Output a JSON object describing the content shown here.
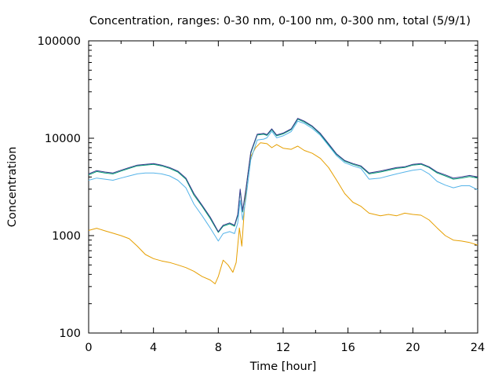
{
  "chart_data": {
    "type": "line",
    "title": "Concentration, ranges: 0-30 nm, 0-100 nm, 0-300 nm, total (5/9/1)",
    "xlabel": "Time [hour]",
    "ylabel": "Concentration",
    "xlim": [
      0,
      24
    ],
    "ylim": [
      100,
      100000
    ],
    "yscale": "log",
    "xticks": [
      0,
      4,
      8,
      12,
      16,
      20,
      24
    ],
    "xtick_labels": [
      "0",
      "4",
      "8",
      "12",
      "16",
      "20",
      "24"
    ],
    "yticks": [
      100,
      1000,
      10000,
      100000
    ],
    "ytick_labels": [
      "100",
      "1000",
      "10000",
      "100000"
    ],
    "grid": false,
    "legend": "none",
    "series": [
      {
        "color": "#E69F00",
        "points": [
          [
            0,
            1130
          ],
          [
            0.5,
            1190
          ],
          [
            1,
            1120
          ],
          [
            1.5,
            1060
          ],
          [
            2,
            1000
          ],
          [
            2.5,
            930
          ],
          [
            3,
            780
          ],
          [
            3.5,
            640
          ],
          [
            4,
            580
          ],
          [
            4.5,
            550
          ],
          [
            5,
            530
          ],
          [
            5.5,
            500
          ],
          [
            6,
            470
          ],
          [
            6.5,
            430
          ],
          [
            7,
            380
          ],
          [
            7.5,
            350
          ],
          [
            7.8,
            320
          ],
          [
            8,
            380
          ],
          [
            8.3,
            560
          ],
          [
            8.6,
            500
          ],
          [
            8.9,
            420
          ],
          [
            9.1,
            530
          ],
          [
            9.3,
            1200
          ],
          [
            9.45,
            780
          ],
          [
            9.6,
            1800
          ],
          [
            9.8,
            4000
          ],
          [
            10,
            6500
          ],
          [
            10.3,
            8000
          ],
          [
            10.6,
            9000
          ],
          [
            11,
            8800
          ],
          [
            11.3,
            8000
          ],
          [
            11.6,
            8600
          ],
          [
            12,
            7900
          ],
          [
            12.5,
            7700
          ],
          [
            12.9,
            8300
          ],
          [
            13.3,
            7500
          ],
          [
            13.8,
            7000
          ],
          [
            14.3,
            6200
          ],
          [
            14.8,
            5000
          ],
          [
            15.3,
            3700
          ],
          [
            15.8,
            2700
          ],
          [
            16.3,
            2200
          ],
          [
            16.8,
            2000
          ],
          [
            17.3,
            1700
          ],
          [
            18,
            1600
          ],
          [
            18.5,
            1650
          ],
          [
            19,
            1600
          ],
          [
            19.5,
            1700
          ],
          [
            20,
            1650
          ],
          [
            20.5,
            1620
          ],
          [
            21,
            1450
          ],
          [
            21.5,
            1200
          ],
          [
            22,
            1000
          ],
          [
            22.5,
            900
          ],
          [
            23,
            880
          ],
          [
            23.5,
            850
          ],
          [
            24,
            800
          ]
        ]
      },
      {
        "color": "#56B4E9",
        "points": [
          [
            0,
            3700
          ],
          [
            0.5,
            3900
          ],
          [
            1,
            3800
          ],
          [
            1.5,
            3700
          ],
          [
            2,
            3900
          ],
          [
            2.5,
            4100
          ],
          [
            3,
            4300
          ],
          [
            3.5,
            4400
          ],
          [
            4,
            4400
          ],
          [
            4.5,
            4300
          ],
          [
            5,
            4100
          ],
          [
            5.5,
            3700
          ],
          [
            6,
            3100
          ],
          [
            6.5,
            2100
          ],
          [
            7,
            1600
          ],
          [
            7.5,
            1200
          ],
          [
            8,
            880
          ],
          [
            8.3,
            1050
          ],
          [
            8.7,
            1100
          ],
          [
            9,
            1050
          ],
          [
            9.2,
            1350
          ],
          [
            9.35,
            2300
          ],
          [
            9.5,
            1450
          ],
          [
            9.7,
            2400
          ],
          [
            10,
            6000
          ],
          [
            10.4,
            9600
          ],
          [
            10.8,
            9800
          ],
          [
            11,
            10100
          ],
          [
            11.3,
            11800
          ],
          [
            11.6,
            10100
          ],
          [
            12,
            10600
          ],
          [
            12.5,
            11700
          ],
          [
            12.9,
            15000
          ],
          [
            13.3,
            14200
          ],
          [
            13.8,
            12600
          ],
          [
            14.3,
            10700
          ],
          [
            14.8,
            8400
          ],
          [
            15.3,
            6600
          ],
          [
            15.8,
            5600
          ],
          [
            16.3,
            5200
          ],
          [
            16.8,
            4900
          ],
          [
            17.3,
            3800
          ],
          [
            18,
            3900
          ],
          [
            18.5,
            4100
          ],
          [
            19,
            4300
          ],
          [
            19.5,
            4500
          ],
          [
            20,
            4700
          ],
          [
            20.5,
            4800
          ],
          [
            21,
            4300
          ],
          [
            21.5,
            3600
          ],
          [
            22,
            3300
          ],
          [
            22.5,
            3100
          ],
          [
            23,
            3250
          ],
          [
            23.5,
            3250
          ],
          [
            24,
            2950
          ]
        ]
      },
      {
        "color": "#009E73",
        "points": [
          [
            0,
            4200
          ],
          [
            0.5,
            4550
          ],
          [
            1,
            4400
          ],
          [
            1.5,
            4300
          ],
          [
            2,
            4600
          ],
          [
            2.5,
            4900
          ],
          [
            3,
            5200
          ],
          [
            3.5,
            5300
          ],
          [
            4,
            5400
          ],
          [
            4.5,
            5200
          ],
          [
            5,
            4900
          ],
          [
            5.5,
            4500
          ],
          [
            6,
            3800
          ],
          [
            6.5,
            2600
          ],
          [
            7,
            2000
          ],
          [
            7.5,
            1500
          ],
          [
            8,
            1080
          ],
          [
            8.3,
            1250
          ],
          [
            8.7,
            1320
          ],
          [
            9,
            1250
          ],
          [
            9.2,
            1600
          ],
          [
            9.35,
            2900
          ],
          [
            9.5,
            1750
          ],
          [
            9.7,
            2900
          ],
          [
            10,
            7000
          ],
          [
            10.4,
            10800
          ],
          [
            10.8,
            11000
          ],
          [
            11,
            10700
          ],
          [
            11.3,
            12300
          ],
          [
            11.6,
            10600
          ],
          [
            12,
            11100
          ],
          [
            12.5,
            12300
          ],
          [
            12.9,
            15700
          ],
          [
            13.3,
            14700
          ],
          [
            13.8,
            13100
          ],
          [
            14.3,
            11000
          ],
          [
            14.8,
            8600
          ],
          [
            15.3,
            6800
          ],
          [
            15.8,
            5800
          ],
          [
            16.3,
            5400
          ],
          [
            16.8,
            5100
          ],
          [
            17.3,
            4300
          ],
          [
            18,
            4500
          ],
          [
            18.5,
            4700
          ],
          [
            19,
            4900
          ],
          [
            19.5,
            5000
          ],
          [
            20,
            5300
          ],
          [
            20.5,
            5400
          ],
          [
            21,
            5000
          ],
          [
            21.5,
            4400
          ],
          [
            22,
            4100
          ],
          [
            22.5,
            3800
          ],
          [
            23,
            3900
          ],
          [
            23.5,
            4050
          ],
          [
            24,
            3900
          ]
        ]
      },
      {
        "color": "#3B3B8F",
        "points": [
          [
            0,
            4300
          ],
          [
            0.5,
            4650
          ],
          [
            1,
            4500
          ],
          [
            1.5,
            4400
          ],
          [
            2,
            4700
          ],
          [
            2.5,
            5000
          ],
          [
            3,
            5300
          ],
          [
            3.5,
            5400
          ],
          [
            4,
            5500
          ],
          [
            4.5,
            5300
          ],
          [
            5,
            5000
          ],
          [
            5.5,
            4600
          ],
          [
            6,
            3900
          ],
          [
            6.5,
            2700
          ],
          [
            7,
            2050
          ],
          [
            7.5,
            1550
          ],
          [
            8,
            1100
          ],
          [
            8.3,
            1280
          ],
          [
            8.7,
            1350
          ],
          [
            9,
            1280
          ],
          [
            9.2,
            1650
          ],
          [
            9.35,
            3000
          ],
          [
            9.5,
            1800
          ],
          [
            9.7,
            3000
          ],
          [
            10,
            7200
          ],
          [
            10.4,
            11000
          ],
          [
            10.8,
            11200
          ],
          [
            11,
            10900
          ],
          [
            11.3,
            12500
          ],
          [
            11.6,
            10800
          ],
          [
            12,
            11300
          ],
          [
            12.5,
            12500
          ],
          [
            12.9,
            16000
          ],
          [
            13.3,
            15000
          ],
          [
            13.8,
            13300
          ],
          [
            14.3,
            11200
          ],
          [
            14.8,
            8800
          ],
          [
            15.3,
            6900
          ],
          [
            15.8,
            5900
          ],
          [
            16.3,
            5500
          ],
          [
            16.8,
            5200
          ],
          [
            17.3,
            4400
          ],
          [
            18,
            4600
          ],
          [
            18.5,
            4800
          ],
          [
            19,
            5000
          ],
          [
            19.5,
            5100
          ],
          [
            20,
            5400
          ],
          [
            20.5,
            5500
          ],
          [
            21,
            5100
          ],
          [
            21.5,
            4500
          ],
          [
            22,
            4200
          ],
          [
            22.5,
            3900
          ],
          [
            23,
            4000
          ],
          [
            23.5,
            4150
          ],
          [
            24,
            4000
          ]
        ]
      }
    ]
  }
}
